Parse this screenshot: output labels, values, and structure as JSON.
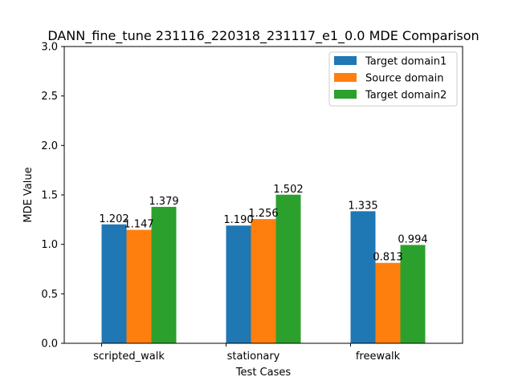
{
  "chart_data": {
    "type": "bar",
    "title": "DANN_fine_tune 231116_220318_231117_e1_0.0 MDE Comparison",
    "xlabel": "Test Cases",
    "ylabel": "MDE Value",
    "categories": [
      "scripted_walk",
      "stationary",
      "freewalk"
    ],
    "ylim": [
      0,
      3.0
    ],
    "yticks": [
      0.0,
      0.5,
      1.0,
      1.5,
      2.0,
      2.5,
      3.0
    ],
    "ytick_labels": [
      "0.0",
      "0.5",
      "1.0",
      "1.5",
      "2.0",
      "2.5",
      "3.0"
    ],
    "grid": false,
    "legend_position": "top-right",
    "series": [
      {
        "name": "Target domain1",
        "color": "#1f77b4",
        "values": [
          1.202,
          1.19,
          1.335
        ],
        "labels": [
          "1.202",
          "1.190",
          "1.335"
        ]
      },
      {
        "name": "Source domain",
        "color": "#ff7f0e",
        "values": [
          1.147,
          1.256,
          0.813
        ],
        "labels": [
          "1.147",
          "1.256",
          "0.813"
        ]
      },
      {
        "name": "Target domain2",
        "color": "#2ca02c",
        "values": [
          1.379,
          1.502,
          0.994
        ],
        "labels": [
          "1.379",
          "1.502",
          "0.994"
        ]
      }
    ]
  }
}
